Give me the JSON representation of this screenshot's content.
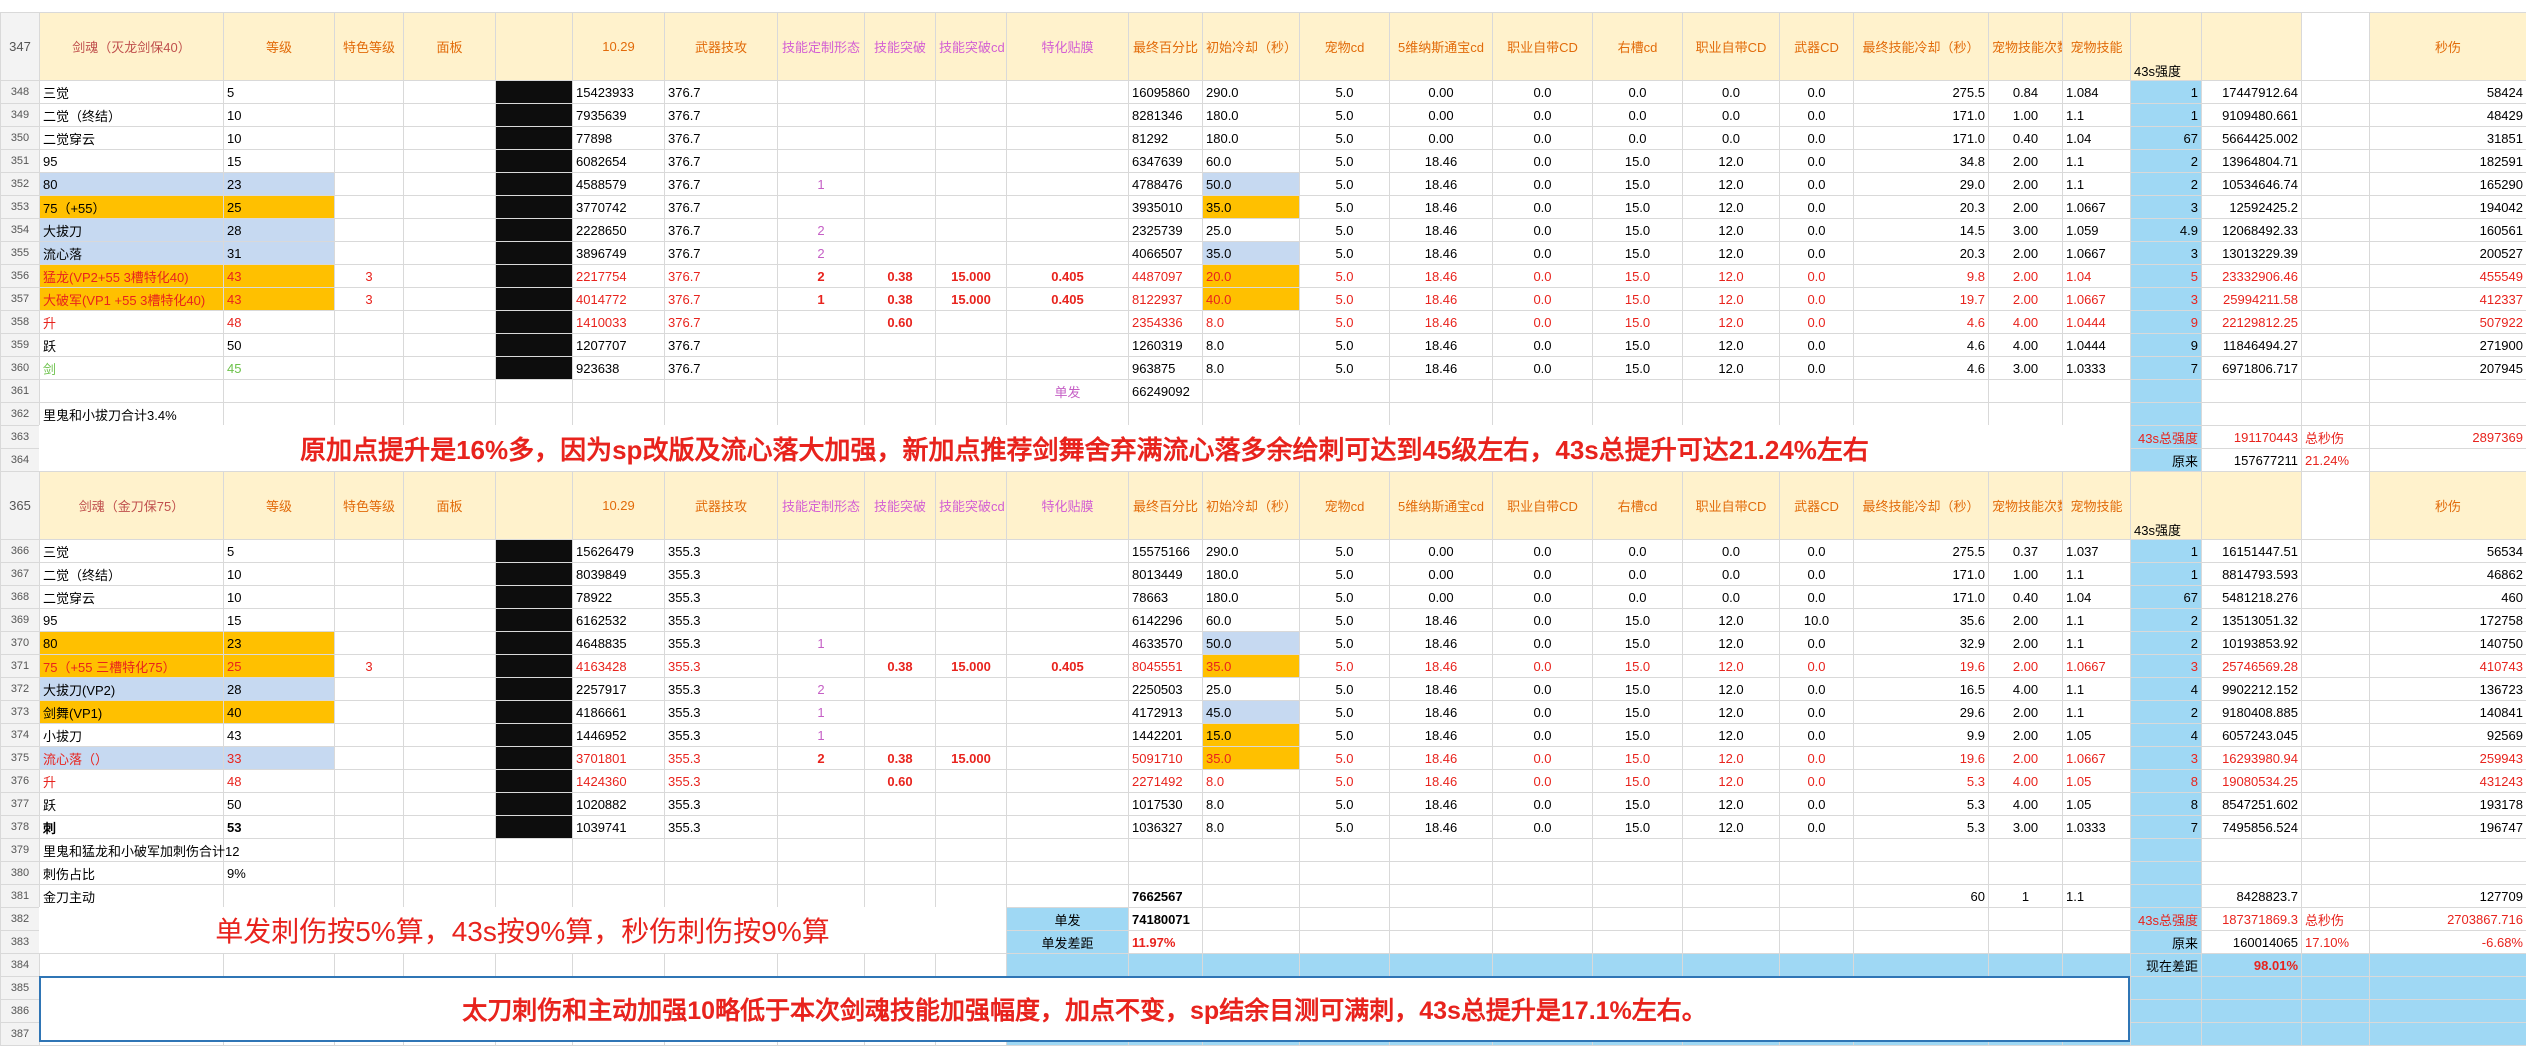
{
  "row_numbers": [
    "347",
    "348",
    "349",
    "350",
    "351",
    "352",
    "353",
    "354",
    "355",
    "356",
    "357",
    "358",
    "359",
    "360",
    "361",
    "362",
    "363",
    "364",
    "365",
    "366",
    "367",
    "368",
    "369",
    "370",
    "371",
    "372",
    "373",
    "374",
    "375",
    "376",
    "377",
    "378",
    "379",
    "380",
    "381",
    "382",
    "383",
    "384",
    "385",
    "386",
    "387"
  ],
  "sheet": {
    "rows": [
      [
        "剑魂（灭龙剑保40）",
        "等级",
        "特色等级",
        "面板",
        null,
        "10.29",
        "武器技攻",
        "技能定制形态",
        "技能突破",
        "技能突破cd",
        "特化贴膜",
        "最终百分比",
        "初始冷却（秒）",
        "宠物cd",
        "5维纳斯通宝cd",
        "职业自带CD",
        "右槽cd",
        "职业自带CD",
        "武器CD",
        "最终技能冷却（秒）",
        "宠物技能次数",
        "宠物技能",
        "43s强度",
        null,
        null,
        "秒伤"
      ],
      [
        "三觉",
        "5",
        null,
        null,
        null,
        "15423933",
        "376.7",
        null,
        null,
        null,
        null,
        "16095860",
        "290.0",
        "5.0",
        "0.00",
        "0.0",
        "0.0",
        "0.0",
        "0.0",
        "275.5",
        "0.84",
        "1.084",
        "1",
        "17447912.64",
        null,
        "58424"
      ],
      [
        "二觉（终结）",
        "10",
        null,
        null,
        null,
        "7935639",
        "376.7",
        null,
        null,
        null,
        null,
        "8281346",
        "180.0",
        "5.0",
        "0.00",
        "0.0",
        "0.0",
        "0.0",
        "0.0",
        "171.0",
        "1.00",
        "1.1",
        "1",
        "9109480.661",
        null,
        "48429"
      ],
      [
        "二觉穿云",
        "10",
        null,
        null,
        null,
        "77898",
        "376.7",
        null,
        null,
        null,
        null,
        "81292",
        "180.0",
        "5.0",
        "0.00",
        "0.0",
        "0.0",
        "0.0",
        "0.0",
        "171.0",
        "0.40",
        "1.04",
        "67",
        "5664425.002",
        null,
        "31851"
      ],
      [
        "95",
        "15",
        null,
        null,
        null,
        "6082654",
        "376.7",
        null,
        null,
        null,
        null,
        "6347639",
        "60.0",
        "5.0",
        "18.46",
        "0.0",
        "15.0",
        "12.0",
        "0.0",
        "34.8",
        "2.00",
        "1.1",
        "2",
        "13964804.71",
        null,
        "182591"
      ],
      [
        "80",
        "23",
        null,
        null,
        null,
        "4588579",
        "376.7",
        "1",
        null,
        null,
        null,
        "4788476",
        "50.0",
        "5.0",
        "18.46",
        "0.0",
        "15.0",
        "12.0",
        "0.0",
        "29.0",
        "2.00",
        "1.1",
        "2",
        "10534646.74",
        null,
        "165290"
      ],
      [
        "75（+55）",
        "25",
        null,
        null,
        null,
        "3770742",
        "376.7",
        null,
        null,
        null,
        null,
        "3935010",
        "35.0",
        "5.0",
        "18.46",
        "0.0",
        "15.0",
        "12.0",
        "0.0",
        "20.3",
        "2.00",
        "1.0667",
        "3",
        "12592425.2",
        null,
        "194042"
      ],
      [
        "大拔刀",
        "28",
        null,
        null,
        null,
        "2228650",
        "376.7",
        "2",
        null,
        null,
        null,
        "2325739",
        "25.0",
        "5.0",
        "18.46",
        "0.0",
        "15.0",
        "12.0",
        "0.0",
        "14.5",
        "3.00",
        "1.059",
        "4.9",
        "12068492.33",
        null,
        "160561"
      ],
      [
        "流心落",
        "31",
        null,
        null,
        null,
        "3896749",
        "376.7",
        "2",
        null,
        null,
        null,
        "4066507",
        "35.0",
        "5.0",
        "18.46",
        "0.0",
        "15.0",
        "12.0",
        "0.0",
        "20.3",
        "2.00",
        "1.0667",
        "3",
        "13013229.39",
        null,
        "200527"
      ],
      [
        "猛龙(VP2+55 3槽特化40)",
        "43",
        "3",
        null,
        null,
        "2217754",
        "376.7",
        "2",
        "0.38",
        "15.000",
        "0.405",
        "4487097",
        "20.0",
        "5.0",
        "18.46",
        "0.0",
        "15.0",
        "12.0",
        "0.0",
        "9.8",
        "2.00",
        "1.04",
        "5",
        "23332906.46",
        null,
        "455549"
      ],
      [
        "大破军(VP1 +55 3槽特化40)",
        "43",
        "3",
        null,
        null,
        "4014772",
        "376.7",
        "1",
        "0.38",
        "15.000",
        "0.405",
        "8122937",
        "40.0",
        "5.0",
        "18.46",
        "0.0",
        "15.0",
        "12.0",
        "0.0",
        "19.7",
        "2.00",
        "1.0667",
        "3",
        "25994211.58",
        null,
        "412337"
      ],
      [
        "升",
        "48",
        null,
        null,
        null,
        "1410033",
        "376.7",
        null,
        "0.60",
        null,
        null,
        "2354336",
        "8.0",
        "5.0",
        "18.46",
        "0.0",
        "15.0",
        "12.0",
        "0.0",
        "4.6",
        "4.00",
        "1.0444",
        "9",
        "22129812.25",
        null,
        "507922"
      ],
      [
        "跃",
        "50",
        null,
        null,
        null,
        "1207707",
        "376.7",
        null,
        null,
        null,
        null,
        "1260319",
        "8.0",
        "5.0",
        "18.46",
        "0.0",
        "15.0",
        "12.0",
        "0.0",
        "4.6",
        "4.00",
        "1.0444",
        "9",
        "11846494.27",
        null,
        "271900"
      ],
      [
        "剑",
        "45",
        null,
        null,
        null,
        "923638",
        "376.7",
        null,
        null,
        null,
        null,
        "963875",
        "8.0",
        "5.0",
        "18.46",
        "0.0",
        "15.0",
        "12.0",
        "0.0",
        "4.6",
        "3.00",
        "1.0333",
        "7",
        "6971806.717",
        null,
        "207945"
      ],
      [
        null,
        null,
        null,
        null,
        null,
        null,
        null,
        null,
        null,
        null,
        "单发",
        "66249092"
      ],
      [
        "里鬼和小拔刀合计3.4%"
      ],
      [
        null,
        null,
        null,
        null,
        null,
        null,
        null,
        null,
        null,
        null,
        null,
        null,
        null,
        null,
        null,
        null,
        null,
        null,
        null,
        null,
        null,
        null,
        "43s总强度",
        "191170443",
        "总秒伤",
        "2897369"
      ],
      [
        null,
        null,
        null,
        null,
        null,
        null,
        null,
        null,
        null,
        null,
        null,
        null,
        null,
        null,
        null,
        null,
        null,
        null,
        null,
        null,
        null,
        null,
        "原来",
        "157677211",
        "21.24%"
      ],
      [
        "剑魂（金刀保75）",
        "等级",
        "特色等级",
        "面板",
        null,
        "10.29",
        "武器技攻",
        "技能定制形态",
        "技能突破",
        "技能突破cd",
        "特化贴膜",
        "最终百分比",
        "初始冷却（秒）",
        "宠物cd",
        "5维纳斯通宝cd",
        "职业自带CD",
        "右槽cd",
        "职业自带CD",
        "武器CD",
        "最终技能冷却（秒）",
        "宠物技能次数",
        "宠物技能",
        "43s强度",
        null,
        null,
        "秒伤"
      ],
      [
        "三觉",
        "5",
        null,
        null,
        null,
        "15626479",
        "355.3",
        null,
        null,
        null,
        null,
        "15575166",
        "290.0",
        "5.0",
        "0.00",
        "0.0",
        "0.0",
        "0.0",
        "0.0",
        "275.5",
        "0.37",
        "1.037",
        "1",
        "16151447.51",
        null,
        "56534"
      ],
      [
        "二觉（终结）",
        "10",
        null,
        null,
        null,
        "8039849",
        "355.3",
        null,
        null,
        null,
        null,
        "8013449",
        "180.0",
        "5.0",
        "0.00",
        "0.0",
        "0.0",
        "0.0",
        "0.0",
        "171.0",
        "1.00",
        "1.1",
        "1",
        "8814793.593",
        null,
        "46862"
      ],
      [
        "二觉穿云",
        "10",
        null,
        null,
        null,
        "78922",
        "355.3",
        null,
        null,
        null,
        null,
        "78663",
        "180.0",
        "5.0",
        "0.00",
        "0.0",
        "0.0",
        "0.0",
        "0.0",
        "171.0",
        "0.40",
        "1.04",
        "67",
        "5481218.276",
        null,
        "460"
      ],
      [
        "95",
        "15",
        null,
        null,
        null,
        "6162532",
        "355.3",
        null,
        null,
        null,
        null,
        "6142296",
        "60.0",
        "5.0",
        "18.46",
        "0.0",
        "15.0",
        "12.0",
        "10.0",
        "35.6",
        "2.00",
        "1.1",
        "2",
        "13513051.32",
        null,
        "172758"
      ],
      [
        "80",
        "23",
        null,
        null,
        null,
        "4648835",
        "355.3",
        "1",
        null,
        null,
        null,
        "4633570",
        "50.0",
        "5.0",
        "18.46",
        "0.0",
        "15.0",
        "12.0",
        "0.0",
        "32.9",
        "2.00",
        "1.1",
        "2",
        "10193853.92",
        null,
        "140750"
      ],
      [
        "75（+55 三槽特化75）",
        "25",
        "3",
        null,
        null,
        "4163428",
        "355.3",
        null,
        "0.38",
        "15.000",
        "0.405",
        "8045551",
        "35.0",
        "5.0",
        "18.46",
        "0.0",
        "15.0",
        "12.0",
        "0.0",
        "19.6",
        "2.00",
        "1.0667",
        "3",
        "25746569.28",
        null,
        "410743"
      ],
      [
        "大拔刀(VP2)",
        "28",
        null,
        null,
        null,
        "2257917",
        "355.3",
        "2",
        null,
        null,
        null,
        "2250503",
        "25.0",
        "5.0",
        "18.46",
        "0.0",
        "15.0",
        "12.0",
        "0.0",
        "16.5",
        "4.00",
        "1.1",
        "4",
        "9902212.152",
        null,
        "136723"
      ],
      [
        "剑舞(VP1)",
        "40",
        null,
        null,
        null,
        "4186661",
        "355.3",
        "1",
        null,
        null,
        null,
        "4172913",
        "45.0",
        "5.0",
        "18.46",
        "0.0",
        "15.0",
        "12.0",
        "0.0",
        "29.6",
        "2.00",
        "1.1",
        "2",
        "9180408.885",
        null,
        "140841"
      ],
      [
        "小拔刀",
        "43",
        null,
        null,
        null,
        "1446952",
        "355.3",
        "1",
        null,
        null,
        null,
        "1442201",
        "15.0",
        "5.0",
        "18.46",
        "0.0",
        "15.0",
        "12.0",
        "0.0",
        "9.9",
        "2.00",
        "1.05",
        "4",
        "6057243.045",
        null,
        "92569"
      ],
      [
        "流心落（）",
        "33",
        null,
        null,
        null,
        "3701801",
        "355.3",
        "2",
        "0.38",
        "15.000",
        null,
        "5091710",
        "35.0",
        "5.0",
        "18.46",
        "0.0",
        "15.0",
        "12.0",
        "0.0",
        "19.6",
        "2.00",
        "1.0667",
        "3",
        "16293980.94",
        null,
        "259943"
      ],
      [
        "升",
        "48",
        null,
        null,
        null,
        "1424360",
        "355.3",
        null,
        "0.60",
        null,
        null,
        "2271492",
        "8.0",
        "5.0",
        "18.46",
        "0.0",
        "15.0",
        "12.0",
        "0.0",
        "5.3",
        "4.00",
        "1.05",
        "8",
        "19080534.25",
        null,
        "431243"
      ],
      [
        "跃",
        "50",
        null,
        null,
        null,
        "1020882",
        "355.3",
        null,
        null,
        null,
        null,
        "1017530",
        "8.0",
        "5.0",
        "18.46",
        "0.0",
        "15.0",
        "12.0",
        "0.0",
        "5.3",
        "4.00",
        "1.05",
        "8",
        "8547251.602",
        null,
        "193178"
      ],
      [
        "刺",
        "53",
        null,
        null,
        null,
        "1039741",
        "355.3",
        null,
        null,
        null,
        null,
        "1036327",
        "8.0",
        "5.0",
        "18.46",
        "0.0",
        "15.0",
        "12.0",
        "0.0",
        "5.3",
        "3.00",
        "1.0333",
        "7",
        "7495856.524",
        null,
        "196747"
      ],
      [
        "里鬼和猛龙和小破军加刺伤合计12"
      ],
      [
        "刺伤占比",
        "9%"
      ],
      [
        "金刀主动",
        null,
        null,
        null,
        null,
        null,
        null,
        null,
        null,
        null,
        null,
        "7662567",
        null,
        null,
        null,
        null,
        null,
        null,
        null,
        "60",
        "1",
        "1.1",
        null,
        "8428823.7",
        null,
        "127709"
      ],
      [
        null,
        null,
        null,
        null,
        null,
        null,
        null,
        null,
        null,
        null,
        "单发",
        "74180071",
        null,
        null,
        null,
        null,
        null,
        null,
        null,
        null,
        null,
        null,
        "43s总强度",
        "187371869.3",
        "总秒伤",
        "2703867.716"
      ],
      [
        null,
        null,
        null,
        null,
        null,
        null,
        null,
        null,
        null,
        null,
        "单发差距",
        "11.97%",
        null,
        null,
        null,
        null,
        null,
        null,
        null,
        null,
        null,
        null,
        "原来",
        "160014065",
        "17.10%",
        "-6.68%"
      ],
      [
        null,
        null,
        null,
        null,
        null,
        null,
        null,
        null,
        null,
        null,
        null,
        null,
        null,
        null,
        null,
        null,
        null,
        null,
        null,
        null,
        null,
        null,
        "现在差距",
        "98.01%"
      ],
      [],
      [],
      []
    ]
  },
  "notes": [
    "原加点提升是16%多，因为sp改版及流心落大加强，新加点推荐剑舞舍弃满流心落多余给刺可达到45级左右，43s总提升可达21.24%左右",
    "单发刺伤按5%算，43s按9%算，秒伤刺伤按9%算",
    "太刀刺伤和主动加强10略低于本次剑魂技能加强幅度，加点不变，sp结余目测可满刺，43s总提升是17.1%左右。"
  ]
}
